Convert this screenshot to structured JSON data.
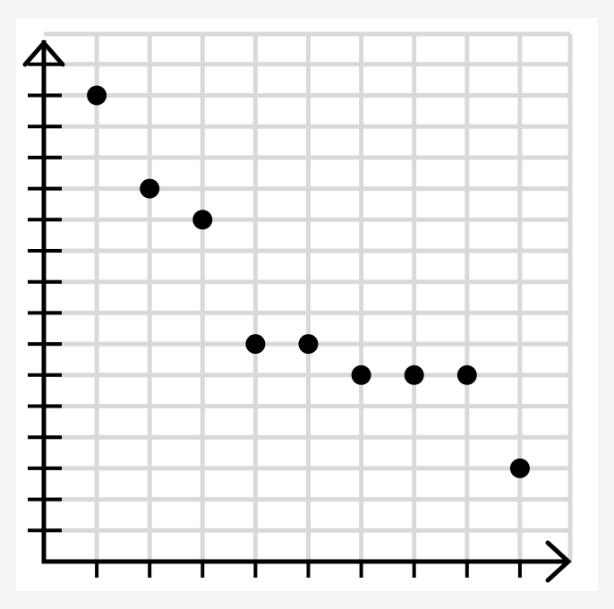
{
  "chart_data": {
    "type": "scatter",
    "title": "",
    "xlabel": "",
    "ylabel": "",
    "xlim": [
      0,
      9.5
    ],
    "ylim": [
      0,
      16.5
    ],
    "x_ticks": [
      1,
      2,
      3,
      4,
      5,
      6,
      7,
      8,
      9
    ],
    "y_ticks": [
      1,
      2,
      3,
      4,
      5,
      6,
      7,
      8,
      9,
      10,
      11,
      12,
      13,
      14,
      15,
      16
    ],
    "tick_labels_shown": false,
    "grid": true,
    "series": [
      {
        "x": [
          1,
          2,
          3,
          4,
          5,
          6,
          7,
          8,
          9
        ],
        "y": [
          15,
          12,
          11,
          7,
          7,
          6,
          6,
          6,
          3
        ]
      }
    ],
    "colors": {
      "points": "#000000",
      "grid": "#d9d9d9",
      "axes": "#000000",
      "background": "#ffffff"
    }
  }
}
